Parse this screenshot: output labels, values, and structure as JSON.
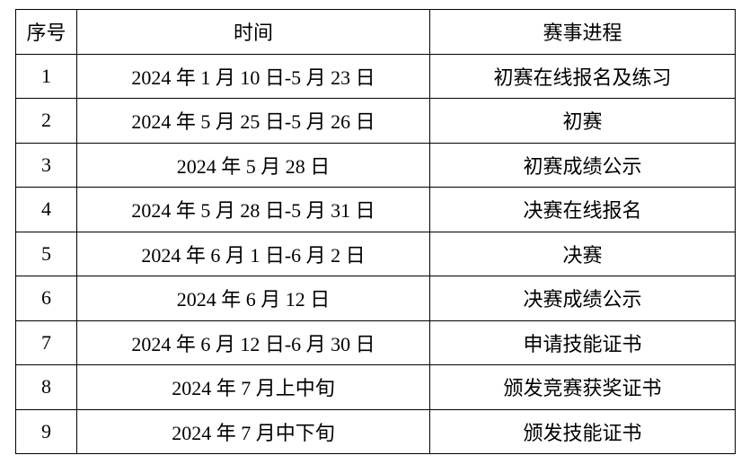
{
  "table": {
    "headers": [
      "序号",
      "时间",
      "赛事进程"
    ],
    "rows": [
      [
        "1",
        "2024 年 1 月 10 日-5 月 23 日",
        "初赛在线报名及练习"
      ],
      [
        "2",
        "2024 年 5 月 25 日-5 月 26 日",
        "初赛"
      ],
      [
        "3",
        "2024 年 5 月 28 日",
        "初赛成绩公示"
      ],
      [
        "4",
        "2024 年 5 月 28 日-5 月 31 日",
        "决赛在线报名"
      ],
      [
        "5",
        "2024 年 6 月 1 日-6 月 2 日",
        "决赛"
      ],
      [
        "6",
        "2024 年 6 月 12 日",
        "决赛成绩公示"
      ],
      [
        "7",
        "2024 年 6 月 12 日-6 月 30 日",
        "申请技能证书"
      ],
      [
        "8",
        "2024 年 7 月上中旬",
        "颁发竞赛获奖证书"
      ],
      [
        "9",
        "2024 年 7 月中下旬",
        "颁发技能证书"
      ]
    ]
  }
}
